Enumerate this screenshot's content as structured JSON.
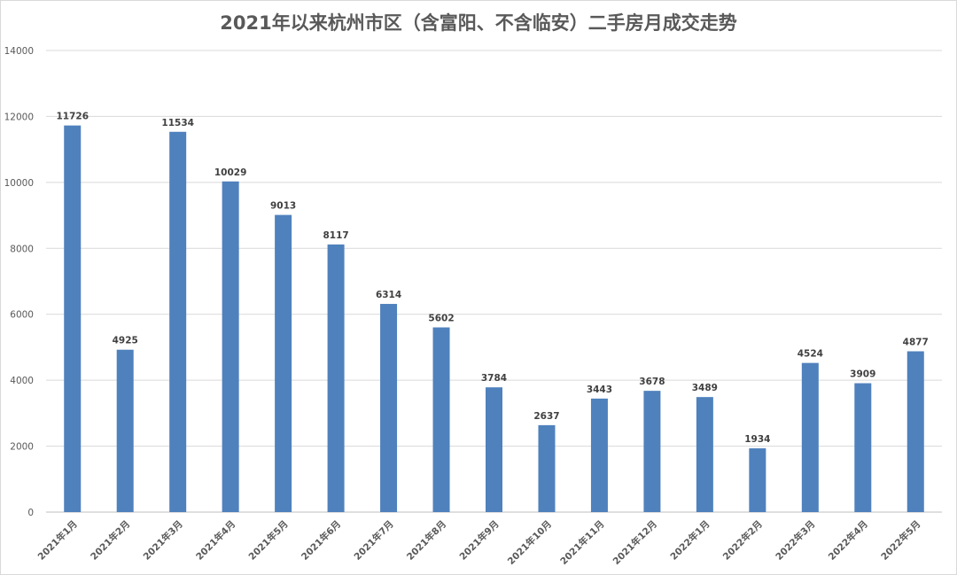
{
  "chart_data": {
    "type": "bar",
    "title": "2021年以来杭州市区（含富阳、不含临安）二手房月成交走势",
    "xlabel": "",
    "ylabel": "",
    "ylim": [
      0,
      14000
    ],
    "yticks": [
      0,
      2000,
      4000,
      6000,
      8000,
      10000,
      12000,
      14000
    ],
    "grid": true,
    "legend": "none",
    "bar_color": "#4f81bd",
    "categories": [
      "2021年1月",
      "2021年2月",
      "2021年3月",
      "2021年4月",
      "2021年5月",
      "2021年6月",
      "2021年7月",
      "2021年8月",
      "2021年9月",
      "2021年10月",
      "2021年11月",
      "2021年12月",
      "2022年1月",
      "2022年2月",
      "2022年3月",
      "2022年4月",
      "2022年5月"
    ],
    "values": [
      11726,
      4925,
      11534,
      10029,
      9013,
      8117,
      6314,
      5602,
      3784,
      2637,
      3443,
      3678,
      3489,
      1934,
      4524,
      3909,
      4877
    ]
  }
}
